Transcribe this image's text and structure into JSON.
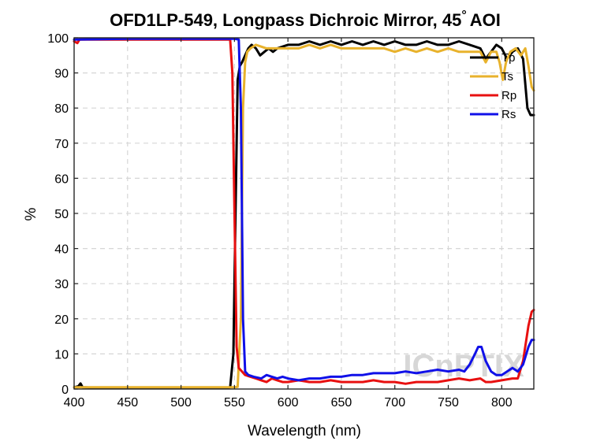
{
  "chart_data": {
    "type": "line",
    "title": "OFD1LP-549, Longpass Dichroic Mirror, 45",
    "title_degree": "°",
    "title_suffix": "AOI",
    "xlabel": "Wavelength (nm)",
    "ylabel": "%",
    "xlim": [
      400,
      830
    ],
    "ylim": [
      0,
      100
    ],
    "xticks": [
      400,
      450,
      500,
      550,
      600,
      650,
      700,
      750,
      800
    ],
    "yticks": [
      0,
      10,
      20,
      30,
      40,
      50,
      60,
      70,
      80,
      90,
      100
    ],
    "grid": true,
    "legend_position": "top-right",
    "watermark": "ICnPTIX",
    "series": [
      {
        "name": "Tp",
        "color": "#000000",
        "points": [
          [
            400,
            0.5
          ],
          [
            404,
            0.8
          ],
          [
            406,
            1.6
          ],
          [
            408,
            0.5
          ],
          [
            430,
            0.3
          ],
          [
            500,
            0.3
          ],
          [
            540,
            0.3
          ],
          [
            546,
            0.5
          ],
          [
            549,
            10
          ],
          [
            551,
            50
          ],
          [
            553,
            88
          ],
          [
            555,
            92
          ],
          [
            557,
            93
          ],
          [
            560,
            95
          ],
          [
            563,
            97
          ],
          [
            566,
            98
          ],
          [
            570,
            97
          ],
          [
            574,
            95
          ],
          [
            578,
            96
          ],
          [
            582,
            97
          ],
          [
            586,
            96
          ],
          [
            590,
            97
          ],
          [
            600,
            98
          ],
          [
            610,
            98
          ],
          [
            620,
            99
          ],
          [
            630,
            98
          ],
          [
            640,
            99
          ],
          [
            650,
            98
          ],
          [
            660,
            99
          ],
          [
            670,
            98
          ],
          [
            680,
            99
          ],
          [
            690,
            98
          ],
          [
            700,
            99
          ],
          [
            710,
            98
          ],
          [
            720,
            98
          ],
          [
            730,
            99
          ],
          [
            740,
            98
          ],
          [
            750,
            98
          ],
          [
            760,
            99
          ],
          [
            770,
            98
          ],
          [
            780,
            97
          ],
          [
            785,
            94
          ],
          [
            790,
            96
          ],
          [
            795,
            98
          ],
          [
            800,
            97
          ],
          [
            805,
            94
          ],
          [
            810,
            96
          ],
          [
            815,
            97
          ],
          [
            820,
            94
          ],
          [
            824,
            80
          ],
          [
            827,
            78
          ],
          [
            830,
            78
          ]
        ]
      },
      {
        "name": "Ts",
        "color": "#E8B22C",
        "points": [
          [
            400,
            0.5
          ],
          [
            450,
            0.5
          ],
          [
            500,
            0.5
          ],
          [
            550,
            0.5
          ],
          [
            553,
            0.6
          ],
          [
            556,
            20
          ],
          [
            558,
            80
          ],
          [
            560,
            93
          ],
          [
            562,
            96
          ],
          [
            565,
            97
          ],
          [
            570,
            98
          ],
          [
            580,
            97
          ],
          [
            590,
            97
          ],
          [
            600,
            97
          ],
          [
            610,
            97
          ],
          [
            620,
            98
          ],
          [
            630,
            97
          ],
          [
            640,
            98
          ],
          [
            650,
            97
          ],
          [
            660,
            97
          ],
          [
            670,
            97
          ],
          [
            680,
            97
          ],
          [
            690,
            97
          ],
          [
            700,
            96
          ],
          [
            710,
            97
          ],
          [
            720,
            96
          ],
          [
            730,
            97
          ],
          [
            740,
            96
          ],
          [
            750,
            97
          ],
          [
            760,
            96
          ],
          [
            770,
            96
          ],
          [
            780,
            96
          ],
          [
            785,
            93
          ],
          [
            790,
            96
          ],
          [
            795,
            96
          ],
          [
            798,
            93
          ],
          [
            801,
            88
          ],
          [
            804,
            93
          ],
          [
            808,
            96
          ],
          [
            813,
            97
          ],
          [
            818,
            95
          ],
          [
            822,
            97
          ],
          [
            825,
            92
          ],
          [
            828,
            86
          ],
          [
            830,
            85
          ]
        ]
      },
      {
        "name": "Rp",
        "color": "#E81010",
        "points": [
          [
            400,
            99
          ],
          [
            403,
            98.5
          ],
          [
            405,
            99.5
          ],
          [
            410,
            99.5
          ],
          [
            500,
            99.5
          ],
          [
            540,
            99.5
          ],
          [
            546,
            99.5
          ],
          [
            548,
            90
          ],
          [
            550,
            50
          ],
          [
            552,
            12
          ],
          [
            554,
            6
          ],
          [
            557,
            5
          ],
          [
            560,
            4
          ],
          [
            565,
            3.5
          ],
          [
            570,
            3
          ],
          [
            575,
            2.5
          ],
          [
            580,
            2
          ],
          [
            585,
            3
          ],
          [
            590,
            2.5
          ],
          [
            595,
            2
          ],
          [
            600,
            2
          ],
          [
            610,
            2.5
          ],
          [
            620,
            2
          ],
          [
            630,
            2
          ],
          [
            640,
            2.5
          ],
          [
            650,
            2
          ],
          [
            660,
            2
          ],
          [
            670,
            2
          ],
          [
            680,
            2.5
          ],
          [
            690,
            2
          ],
          [
            700,
            2
          ],
          [
            710,
            1.5
          ],
          [
            720,
            2
          ],
          [
            730,
            2
          ],
          [
            740,
            2
          ],
          [
            750,
            2.5
          ],
          [
            760,
            3
          ],
          [
            770,
            2.5
          ],
          [
            780,
            3
          ],
          [
            785,
            2
          ],
          [
            790,
            2
          ],
          [
            800,
            2.5
          ],
          [
            810,
            3
          ],
          [
            815,
            3
          ],
          [
            820,
            8
          ],
          [
            825,
            18
          ],
          [
            828,
            22
          ],
          [
            830,
            22.5
          ]
        ]
      },
      {
        "name": "Rs",
        "color": "#1010E8",
        "points": [
          [
            400,
            99.5
          ],
          [
            450,
            99.7
          ],
          [
            500,
            99.7
          ],
          [
            550,
            99.7
          ],
          [
            554,
            99.5
          ],
          [
            556,
            80
          ],
          [
            558,
            20
          ],
          [
            560,
            5
          ],
          [
            563,
            4
          ],
          [
            568,
            3.5
          ],
          [
            575,
            3
          ],
          [
            580,
            4
          ],
          [
            585,
            3.5
          ],
          [
            590,
            3
          ],
          [
            595,
            3.5
          ],
          [
            600,
            3
          ],
          [
            610,
            2.5
          ],
          [
            620,
            3
          ],
          [
            630,
            3
          ],
          [
            640,
            3.5
          ],
          [
            650,
            3.5
          ],
          [
            660,
            4
          ],
          [
            670,
            4
          ],
          [
            680,
            4.5
          ],
          [
            690,
            4.5
          ],
          [
            700,
            4.5
          ],
          [
            710,
            5
          ],
          [
            720,
            4.5
          ],
          [
            730,
            5
          ],
          [
            740,
            5.5
          ],
          [
            750,
            5
          ],
          [
            760,
            5.5
          ],
          [
            765,
            5
          ],
          [
            770,
            7
          ],
          [
            775,
            10
          ],
          [
            778,
            12
          ],
          [
            781,
            12
          ],
          [
            785,
            8
          ],
          [
            790,
            5
          ],
          [
            795,
            4
          ],
          [
            800,
            4
          ],
          [
            805,
            5
          ],
          [
            810,
            6
          ],
          [
            815,
            5
          ],
          [
            820,
            7
          ],
          [
            825,
            12
          ],
          [
            828,
            14
          ],
          [
            830,
            14
          ]
        ]
      }
    ]
  }
}
